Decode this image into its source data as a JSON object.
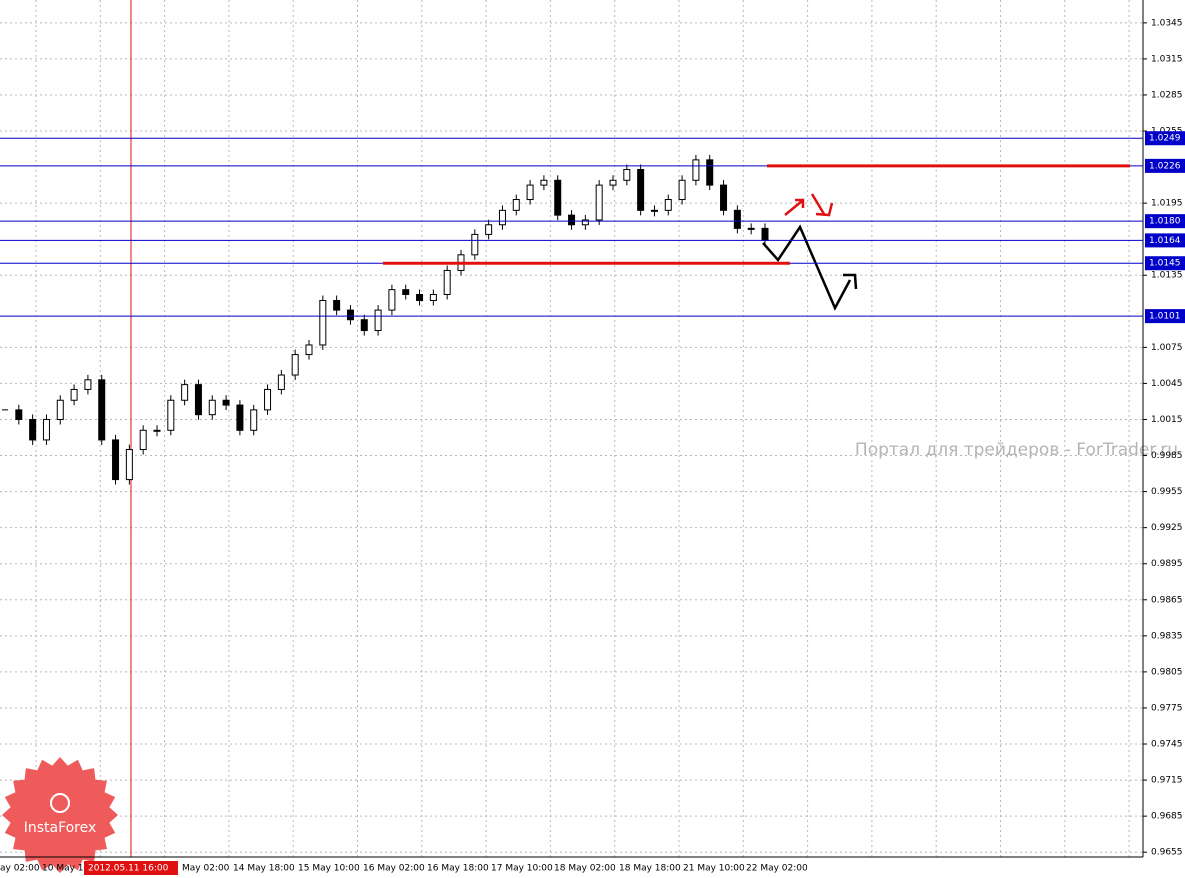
{
  "chart_data": {
    "type": "candlestick",
    "values": [
      1.0023,
      1.0015,
      0.9998,
      1.0015,
      1.0031,
      1.004,
      1.0048,
      0.9998,
      0.9965,
      0.999,
      1.0006,
      1.0006,
      1.0031,
      1.0044,
      1.0019,
      1.0031,
      1.0027,
      1.0006,
      1.0023,
      1.004,
      1.0052,
      1.0069,
      1.0077,
      1.0114,
      1.0106,
      1.0098,
      1.0089,
      1.0106,
      1.0123,
      1.0119,
      1.0114,
      1.0119,
      1.0139,
      1.0152,
      1.0169,
      1.0177,
      1.0189,
      1.0198,
      1.021,
      1.0214,
      1.0185,
      1.0177,
      1.0181,
      1.021,
      1.0214,
      1.0223,
      1.0189,
      1.0189,
      1.0198,
      1.0214,
      1.0231,
      1.021,
      1.0189,
      1.0174,
      1.0174,
      1.0164
    ],
    "ylim": [
      0.9651,
      1.0364
    ],
    "yticks": [
      1.0345,
      1.0315,
      1.0285,
      1.0255,
      1.0195,
      1.0135,
      1.0075,
      1.0045,
      1.0015,
      0.9985,
      0.9955,
      0.9925,
      0.9895,
      0.9865,
      0.9835,
      0.9805,
      0.9775,
      0.9745,
      0.9715,
      0.9685,
      0.9655
    ],
    "grid": true,
    "levels": [
      1.0249,
      1.0226,
      {
        "value": 1.018,
        "label": "1.0180"
      },
      1.0164,
      1.0145,
      1.0101
    ],
    "level_color": "#0000c8",
    "red_levels": [
      1.0226,
      1.0145
    ],
    "red_color": "#e01010",
    "x_labels": [
      "ay 02:00",
      "10 May 1",
      "May 02:00",
      "14 May 18:00",
      "15 May 10:00",
      "16 May 02:00",
      "16 May 18:00",
      "17 May 10:00",
      "18 May 02:00",
      "18 May 18:00",
      "21 May 10:00",
      "22 May 02:00"
    ],
    "cursor_label": "2012.05.11 16:00",
    "watermark": "Портал для трейдеров - ForTrader.ru",
    "logo": "InstaForex"
  }
}
